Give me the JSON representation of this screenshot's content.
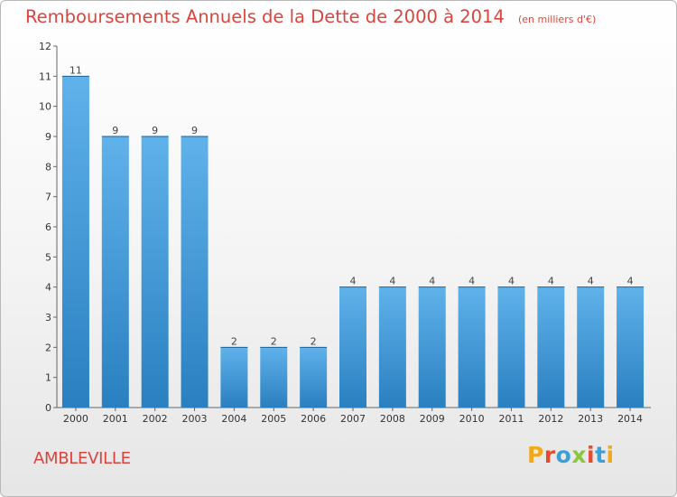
{
  "header": {
    "title": "Remboursements Annuels de la Dette de 2000 à 2014",
    "subtitle": "(en milliers d'€)"
  },
  "footer": {
    "commune": "AMBLEVILLE",
    "logo_letters": [
      "P",
      "r",
      "o",
      "x",
      "i",
      "t",
      "i"
    ]
  },
  "chart_data": {
    "type": "bar",
    "title": "Remboursements Annuels de la Dette de 2000 à 2014",
    "subtitle": "(en milliers d'€)",
    "categories": [
      "2000",
      "2001",
      "2002",
      "2003",
      "2004",
      "2005",
      "2006",
      "2007",
      "2008",
      "2009",
      "2010",
      "2011",
      "2012",
      "2013",
      "2014"
    ],
    "values": [
      11,
      9,
      9,
      9,
      2,
      2,
      2,
      4,
      4,
      4,
      4,
      4,
      4,
      4,
      4
    ],
    "data_labels": [
      "11",
      "9",
      "9",
      "9",
      "2",
      "2",
      "2",
      "4",
      "4",
      "4",
      "4",
      "4",
      "4",
      "4",
      "4"
    ],
    "ylim": [
      0,
      12
    ],
    "yticks": [
      0,
      1,
      2,
      3,
      4,
      5,
      6,
      7,
      8,
      9,
      10,
      11,
      12
    ],
    "grid": false,
    "bar_color_top": "#5fb2ea",
    "bar_color_bottom": "#2a7fc0"
  }
}
